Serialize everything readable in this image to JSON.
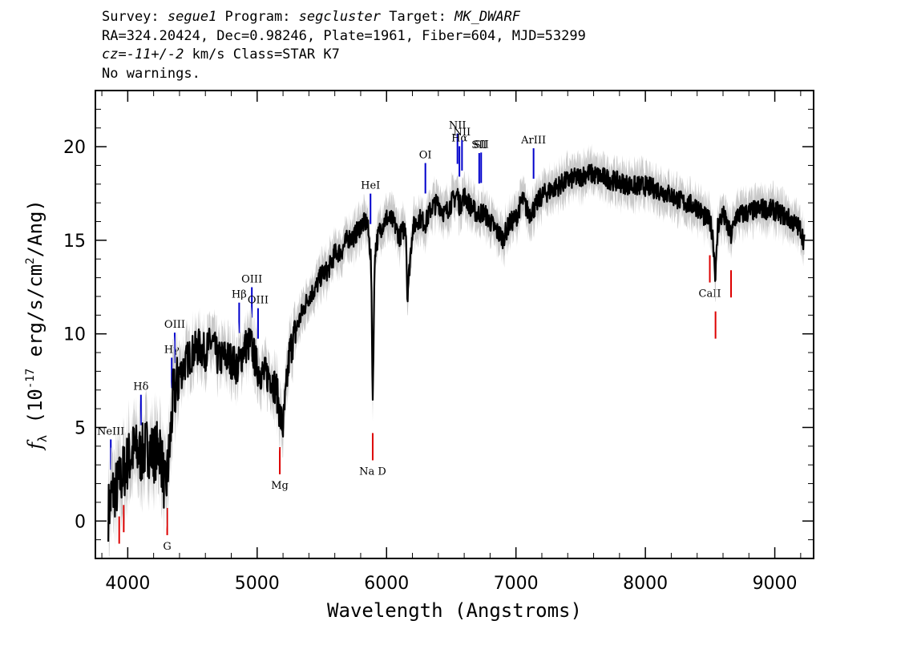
{
  "header": {
    "line1": {
      "survey_prefix": "Survey: ",
      "survey": "segue1",
      "program_prefix": " Program: ",
      "program": "segcluster",
      "target_prefix": " Target: ",
      "target": "MK_DWARF"
    },
    "line2": "RA=324.20424, Dec=0.98246, Plate=1961, Fiber=604, MJD=53299",
    "line3": {
      "cz": "cz=-11+/-2",
      "rest": " km/s Class=STAR K7"
    },
    "line4": "No warnings."
  },
  "chart_data": {
    "type": "line",
    "xlabel": "Wavelength (Angstroms)",
    "ylabel": "f_λ (10^-17 erg/s/cm^2/Ang)",
    "xlim": [
      3750,
      9300
    ],
    "ylim": [
      -2,
      23
    ],
    "xticks": [
      4000,
      5000,
      6000,
      7000,
      8000,
      9000
    ],
    "yticks": [
      0,
      5,
      10,
      15,
      20
    ],
    "series": [
      {
        "color": "#000000",
        "error_color": "#c8c8c8",
        "x": [
          3850,
          3880,
          3920,
          3960,
          4000,
          4050,
          4100,
          4150,
          4200,
          4250,
          4290,
          4320,
          4350,
          4400,
          4450,
          4500,
          4550,
          4600,
          4650,
          4700,
          4750,
          4800,
          4850,
          4900,
          4950,
          5000,
          5050,
          5100,
          5150,
          5180,
          5200,
          5250,
          5300,
          5350,
          5400,
          5450,
          5500,
          5550,
          5600,
          5650,
          5700,
          5750,
          5800,
          5850,
          5880,
          5893,
          5910,
          5950,
          6000,
          6050,
          6100,
          6150,
          6160,
          6200,
          6250,
          6300,
          6350,
          6400,
          6450,
          6500,
          6550,
          6563,
          6600,
          6650,
          6700,
          6750,
          6800,
          6850,
          6900,
          6950,
          7000,
          7050,
          7100,
          7150,
          7200,
          7300,
          7400,
          7500,
          7550,
          7600,
          7700,
          7800,
          7900,
          8000,
          8100,
          8200,
          8300,
          8400,
          8450,
          8498,
          8520,
          8542,
          8560,
          8600,
          8662,
          8700,
          8800,
          8900,
          9000,
          9100,
          9200,
          9230
        ],
        "y": [
          0.5,
          1.5,
          1.8,
          2.5,
          3.2,
          3.8,
          3.5,
          4.0,
          3.6,
          4.0,
          1.5,
          3.5,
          6.5,
          7.8,
          8.5,
          9.0,
          9.3,
          9.0,
          9.6,
          8.6,
          8.8,
          8.6,
          8.2,
          9.3,
          9.5,
          8.2,
          7.8,
          7.8,
          7.0,
          5.5,
          5.0,
          9.0,
          10.2,
          11.2,
          12.0,
          12.4,
          13.2,
          13.4,
          14.3,
          14.4,
          15.1,
          15.2,
          15.8,
          16.0,
          14.0,
          6.5,
          14.5,
          15.6,
          16.2,
          16.0,
          15.2,
          15.8,
          12.0,
          15.6,
          16.2,
          15.9,
          16.8,
          17.0,
          16.4,
          17.0,
          17.5,
          16.8,
          17.4,
          16.8,
          16.4,
          16.5,
          16.0,
          15.5,
          15.1,
          15.9,
          16.2,
          17.2,
          16.4,
          16.8,
          17.4,
          17.8,
          18.2,
          18.4,
          18.6,
          18.5,
          18.3,
          18.1,
          17.9,
          17.9,
          17.7,
          17.4,
          17.0,
          16.8,
          16.3,
          16.0,
          15.4,
          13.0,
          15.8,
          16.4,
          15.2,
          16.3,
          16.5,
          16.7,
          16.6,
          16.2,
          15.6,
          14.8
        ]
      }
    ],
    "line_markers": [
      {
        "label": "NeIII",
        "x": 3869,
        "color": "#0000cc"
      },
      {
        "label": "Hδ",
        "x": 4102,
        "color": "#0000cc"
      },
      {
        "label": "Hγ",
        "x": 4340,
        "color": "#0000cc"
      },
      {
        "label": "OIII",
        "x": 4363,
        "color": "#0000cc"
      },
      {
        "label": "Hβ",
        "x": 4861,
        "color": "#0000cc"
      },
      {
        "label": "OIII",
        "x": 4959,
        "color": "#0000cc"
      },
      {
        "label": "OIII",
        "x": 5007,
        "color": "#0000cc"
      },
      {
        "label": "HeI",
        "x": 5876,
        "color": "#0000cc"
      },
      {
        "label": "OI",
        "x": 6300,
        "color": "#0000cc"
      },
      {
        "label": "NII",
        "x": 6548,
        "color": "#0000cc"
      },
      {
        "label": "Hα",
        "x": 6563,
        "color": "#0000cc"
      },
      {
        "label": "NII",
        "x": 6583,
        "color": "#0000cc"
      },
      {
        "label": "SII",
        "x": 6716,
        "color": "#0000cc"
      },
      {
        "label": "SII",
        "x": 6731,
        "color": "#0000cc"
      },
      {
        "label": "ArIII",
        "x": 7136,
        "color": "#0000cc"
      },
      {
        "label": "",
        "x": 3934,
        "color": "#dd0000"
      },
      {
        "label": "",
        "x": 3969,
        "color": "#dd0000"
      },
      {
        "label": "G",
        "x": 4305,
        "color": "#dd0000"
      },
      {
        "label": "Mg",
        "x": 5175,
        "color": "#dd0000"
      },
      {
        "label": "Na D",
        "x": 5893,
        "color": "#dd0000"
      },
      {
        "label": "CaII",
        "x": 8498,
        "color": "#dd0000"
      },
      {
        "label": "",
        "x": 8542,
        "color": "#dd0000"
      },
      {
        "label": "",
        "x": 8662,
        "color": "#dd0000"
      }
    ]
  }
}
